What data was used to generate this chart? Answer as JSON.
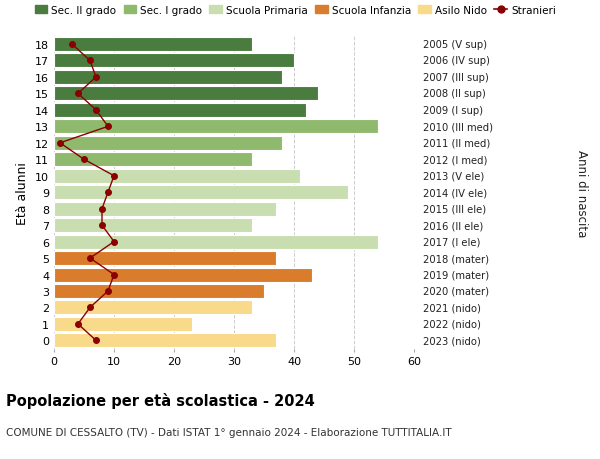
{
  "ages": [
    0,
    1,
    2,
    3,
    4,
    5,
    6,
    7,
    8,
    9,
    10,
    11,
    12,
    13,
    14,
    15,
    16,
    17,
    18
  ],
  "bar_values": [
    37,
    23,
    33,
    35,
    43,
    37,
    54,
    33,
    37,
    49,
    41,
    33,
    38,
    54,
    42,
    44,
    38,
    40,
    33
  ],
  "right_labels": [
    "2023 (nido)",
    "2022 (nido)",
    "2021 (nido)",
    "2020 (mater)",
    "2019 (mater)",
    "2018 (mater)",
    "2017 (I ele)",
    "2016 (II ele)",
    "2015 (III ele)",
    "2014 (IV ele)",
    "2013 (V ele)",
    "2012 (I med)",
    "2011 (II med)",
    "2010 (III med)",
    "2009 (I sup)",
    "2008 (II sup)",
    "2007 (III sup)",
    "2006 (IV sup)",
    "2005 (V sup)"
  ],
  "stranieri_values": [
    7,
    4,
    6,
    9,
    10,
    6,
    10,
    8,
    8,
    9,
    10,
    5,
    1,
    9,
    7,
    4,
    7,
    6,
    3
  ],
  "bar_colors": {
    "nido": "#f9d98a",
    "mater": "#d97c2b",
    "ele": "#c8ddb0",
    "med": "#8fba6e",
    "sup": "#4a7c3f"
  },
  "stranieri_color": "#8b0000",
  "legend_items": [
    {
      "label": "Sec. II grado",
      "color": "#4a7c3f",
      "type": "patch"
    },
    {
      "label": "Sec. I grado",
      "color": "#8fba6e",
      "type": "patch"
    },
    {
      "label": "Scuola Primaria",
      "color": "#c8ddb0",
      "type": "patch"
    },
    {
      "label": "Scuola Infanzia",
      "color": "#d97c2b",
      "type": "patch"
    },
    {
      "label": "Asilo Nido",
      "color": "#f9d98a",
      "type": "patch"
    },
    {
      "label": "Stranieri",
      "color": "#8b0000",
      "type": "line"
    }
  ],
  "ylabel_left": "Età alunni",
  "ylabel_right": "Anni di nascita",
  "title": "Popolazione per età scolastica - 2024",
  "subtitle": "COMUNE DI CESSALTO (TV) - Dati ISTAT 1° gennaio 2024 - Elaborazione TUTTITALIA.IT",
  "xlim": [
    0,
    60
  ],
  "xticks": [
    0,
    10,
    20,
    30,
    40,
    50,
    60
  ],
  "background_color": "#ffffff",
  "grid_color": "#cccccc"
}
